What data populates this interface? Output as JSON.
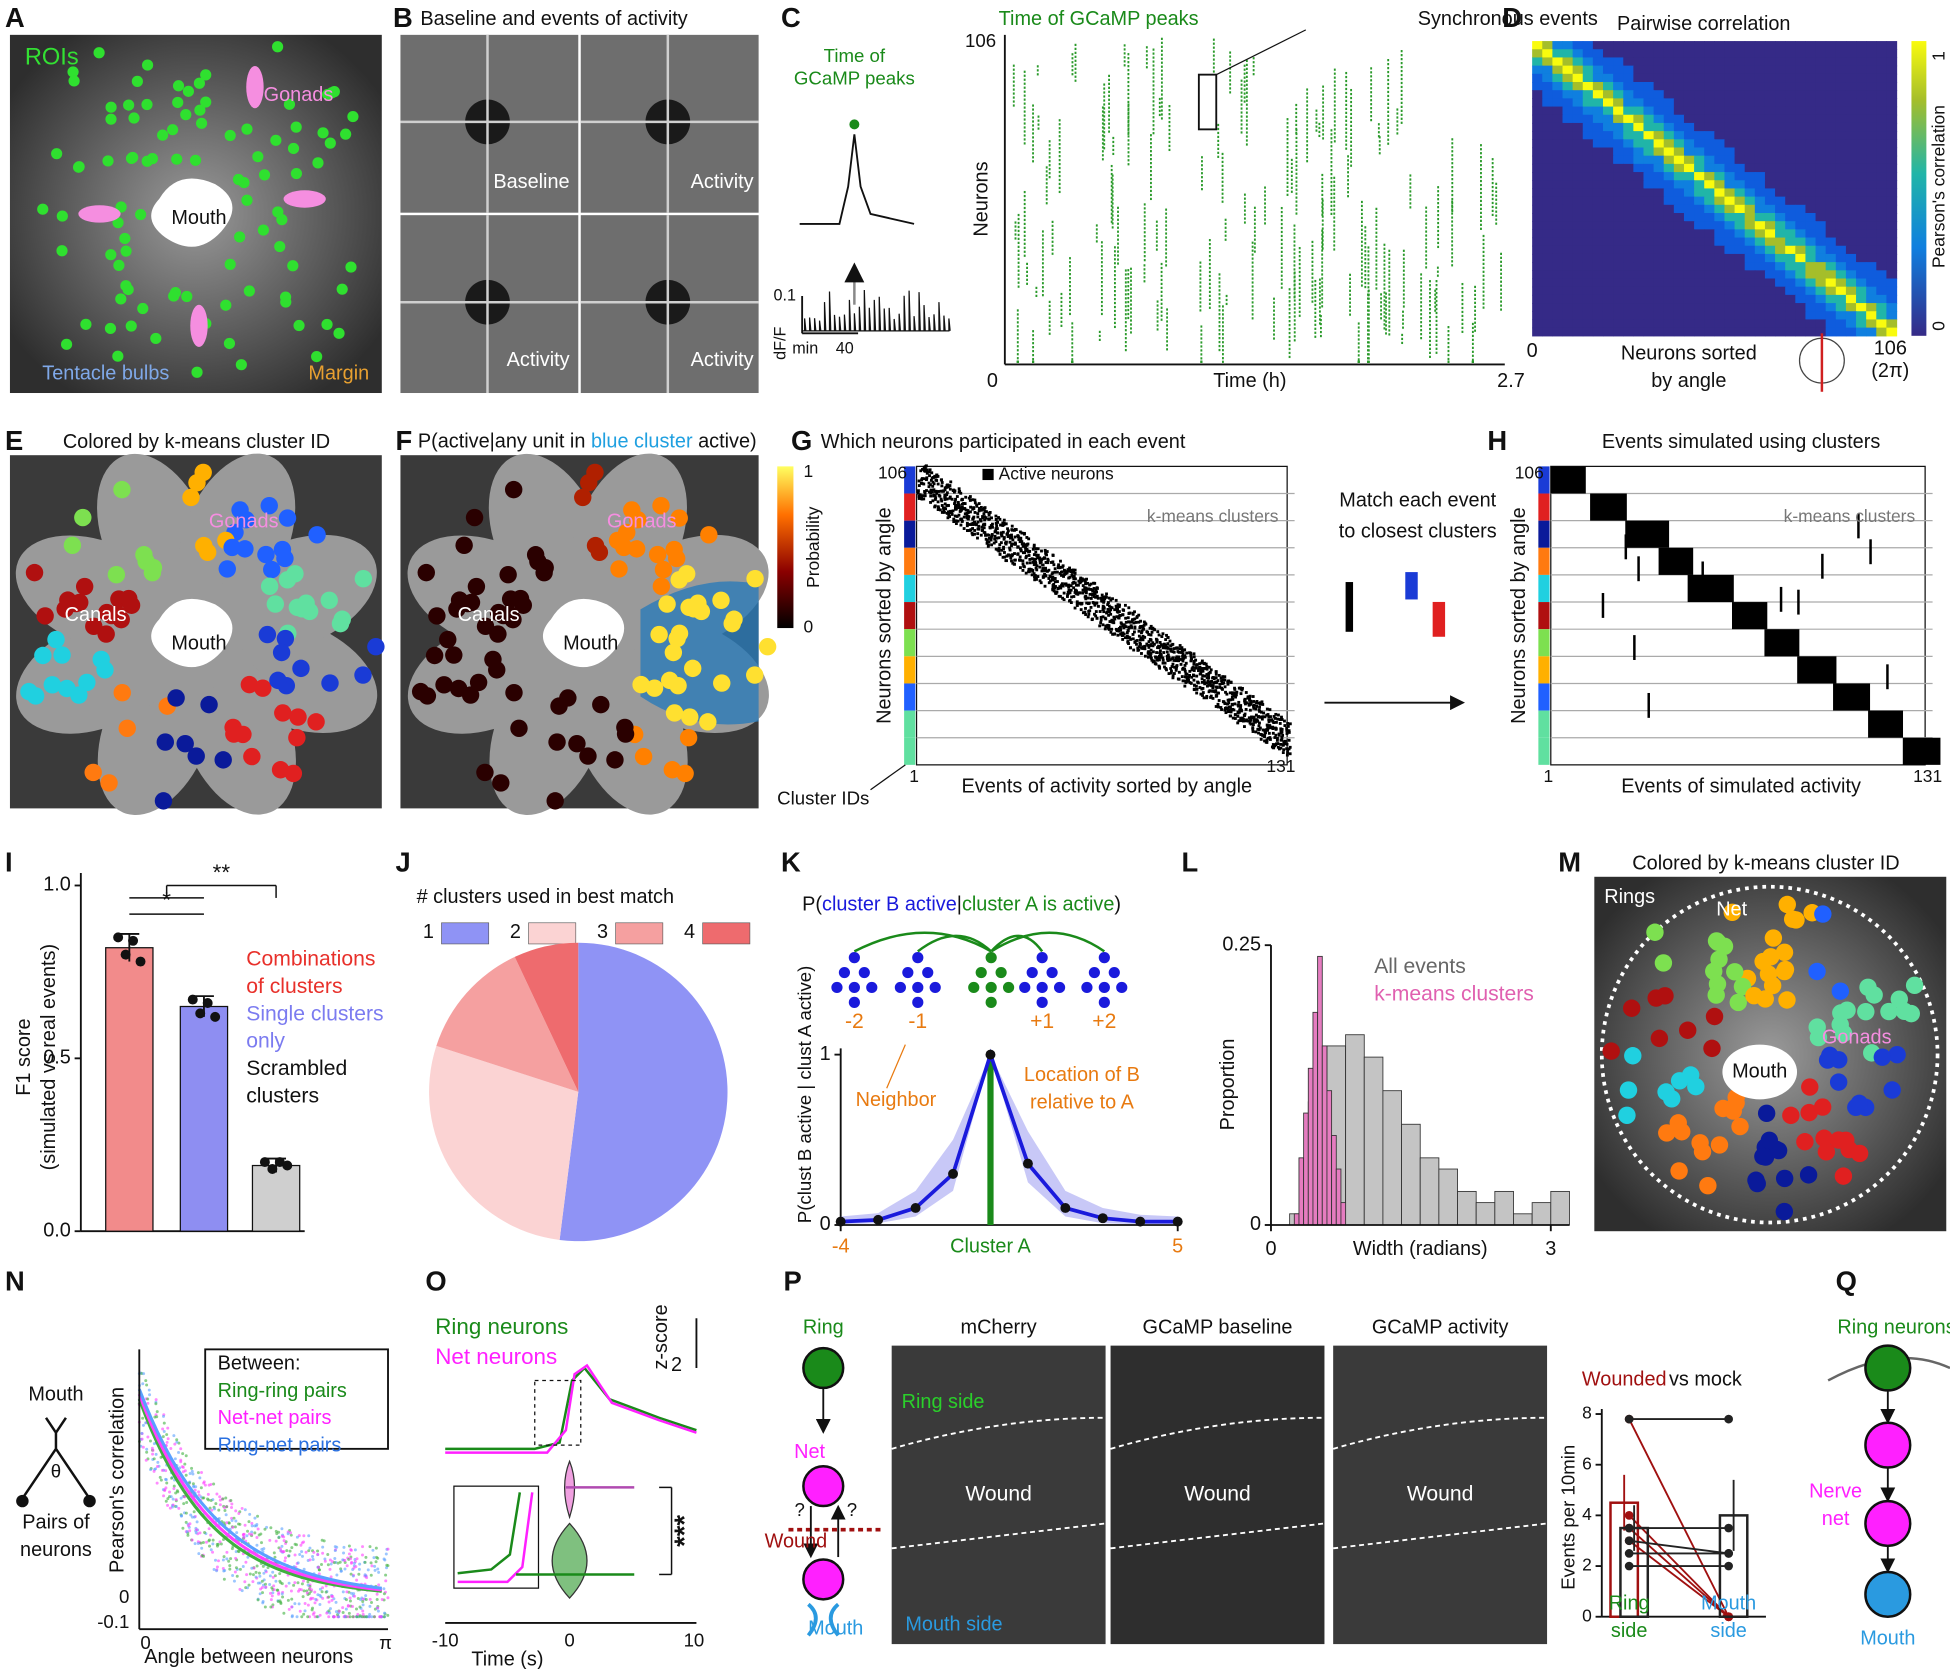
{
  "panel_a": {
    "letter": "A",
    "rois": "ROIs",
    "gonads": "Gonads",
    "mouth": "Mouth",
    "bulbs": "Tentacle bulbs",
    "margin": "Margin"
  },
  "panel_b": {
    "letter": "B",
    "title": "Baseline and events of activity",
    "q1": "Baseline",
    "q2": "Activity",
    "q3": "Activity",
    "q4": "Activity"
  },
  "panel_c": {
    "letter": "C",
    "peak": [
      "Time of",
      "GCaMP peaks"
    ],
    "scale_y": "0.1",
    "scale_y_unit": "dF/F",
    "scale_x_unit": "min",
    "scale_x": "40",
    "raster_title": "Time of GCaMP peaks",
    "callout": "Synchronous events",
    "y_top": "106",
    "ylabel": "Neurons",
    "x_start": "0",
    "xlabel": "Time (h)",
    "x_end": "2.7"
  },
  "panel_d": {
    "letter": "D",
    "title": "Pairwise correlation",
    "cbar_top": "1",
    "cbar_bottom": "0",
    "cbar_label": "Pearson's correlation",
    "x_start": "0",
    "xlabel": [
      "Neurons sorted",
      "by angle"
    ],
    "x_end": [
      "106",
      "(2π)"
    ]
  },
  "panel_e": {
    "letter": "E",
    "title": "Colored by k-means cluster ID",
    "gonads": "Gonads",
    "canals": "Canals",
    "mouth": "Mouth"
  },
  "panel_f": {
    "letter": "F",
    "title": [
      "P(active|any unit in ",
      "blue cluster",
      " active)"
    ],
    "cbar_top": "1",
    "cbar_bottom": "0",
    "cbar_label": "Probability",
    "gonads": "Gonads",
    "canals": "Canals",
    "mouth": "Mouth"
  },
  "panel_g": {
    "letter": "G",
    "title": "Which neurons participated in each event",
    "y_top": "106",
    "legend": "Active neurons",
    "clusters": "k-means clusters",
    "ylabel": "Neurons sorted by angle",
    "x_start": "1",
    "xlabel": "Events of activity sorted by angle",
    "x_end": "131",
    "cluster_ids": "Cluster IDs",
    "match": [
      "Match each event",
      "to closest clusters"
    ]
  },
  "panel_h": {
    "letter": "H",
    "title": "Events simulated using clusters",
    "y_top": "106",
    "clusters": "k-means clusters",
    "ylabel": "Neurons sorted by angle",
    "x_start": "1",
    "xlabel": "Events of simulated activity",
    "x_end": "131"
  },
  "panel_i": {
    "letter": "I",
    "chart": {
      "type": "bar",
      "ylabel": [
        "F1 score",
        "(simulated vs real events)"
      ],
      "categories": [
        [
          "Combinations",
          "of clusters"
        ],
        [
          "Single clusters",
          "only"
        ],
        [
          "Scrambled",
          "clusters"
        ]
      ],
      "values": [
        0.82,
        0.65,
        0.19
      ],
      "errors": [
        0.04,
        0.03,
        0.02
      ],
      "points": [
        [
          0.85,
          0.8,
          0.84,
          0.78
        ],
        [
          0.67,
          0.63,
          0.66,
          0.62
        ],
        [
          0.2,
          0.18,
          0.2,
          0.19
        ]
      ],
      "colors": [
        "#f28b8b",
        "#8e8ef2",
        "#cfcfcf"
      ],
      "label_colors": [
        "#e8302a",
        "#7b7bf0",
        "#111111"
      ],
      "ylim": [
        0,
        1
      ],
      "yticks": [
        {
          "value": 0,
          "label": "0.0"
        },
        {
          "value": 0.5,
          "label": "0.5"
        },
        {
          "value": 1,
          "label": "1.0"
        }
      ],
      "significance": [
        "*",
        "**"
      ]
    }
  },
  "panel_j": {
    "letter": "J",
    "chart": {
      "type": "pie",
      "title": "# clusters used in best match",
      "categories": [
        "1",
        "2",
        "3",
        "4"
      ],
      "values": [
        52,
        28,
        13,
        7
      ],
      "colors": [
        "#8f93f5",
        "#fbd3d3",
        "#f5a0a0",
        "#ee6b6e"
      ]
    }
  },
  "panel_k": {
    "letter": "K",
    "nodes": [
      "-2",
      "-1",
      "+1",
      "+2"
    ],
    "notes": [
      "Neighbor",
      "Location of B",
      "relative to A"
    ],
    "chart": {
      "type": "line",
      "title": [
        "P(",
        "cluster B active",
        "|",
        "cluster A is active",
        ")"
      ],
      "ylabel": "P(clust B active | clust A active)",
      "xlabel": "Cluster A",
      "x": [
        -4,
        -3,
        -2,
        -1,
        0,
        1,
        2,
        3,
        4,
        5
      ],
      "values": [
        0.02,
        0.03,
        0.1,
        0.3,
        1,
        0.36,
        0.1,
        0.04,
        0.02,
        0.02
      ],
      "ci_low": [
        0.005,
        0.01,
        0.05,
        0.2,
        1,
        0.25,
        0.05,
        0.01,
        0.005,
        0.005
      ],
      "ci_high": [
        0.05,
        0.07,
        0.2,
        0.5,
        1,
        0.55,
        0.2,
        0.1,
        0.06,
        0.05
      ],
      "color": "#1a1adc",
      "xlim": [
        -4,
        5
      ],
      "ylim": [
        0,
        1
      ],
      "xticks": [
        -4,
        5
      ],
      "yticks": [
        0,
        1
      ]
    }
  },
  "panel_l": {
    "letter": "L",
    "chart": {
      "type": "histogram",
      "xlabel": "Width (radians)",
      "ylabel": "Proportion",
      "series": [
        {
          "name": "All events",
          "color": "#c4c4c4",
          "bins": [
            0.2,
            0.4,
            0.6,
            0.8,
            1.0,
            1.2,
            1.4,
            1.6,
            1.8,
            2.0,
            2.2,
            2.4,
            2.6,
            2.8,
            3.0,
            3.2
          ],
          "values": [
            0.01,
            0.11,
            0.16,
            0.17,
            0.15,
            0.12,
            0.09,
            0.06,
            0.05,
            0.03,
            0.02,
            0.03,
            0.01,
            0.02,
            0.03
          ]
        },
        {
          "name": "k-means clusters",
          "color": "#e57cc0",
          "bins": [
            0.25,
            0.3,
            0.35,
            0.4,
            0.45,
            0.5,
            0.55,
            0.6,
            0.65,
            0.7,
            0.75,
            0.8
          ],
          "values": [
            0.01,
            0.06,
            0.1,
            0.14,
            0.19,
            0.24,
            0.16,
            0.12,
            0.08,
            0.05,
            0.02
          ]
        }
      ],
      "xlim": [
        0,
        3.2
      ],
      "ylim": [
        0,
        0.25
      ],
      "xticks": [
        0,
        3
      ],
      "yticks": [
        0,
        0.25
      ]
    }
  },
  "panel_m": {
    "letter": "M",
    "title": "Colored by k-means cluster ID",
    "rings": "Rings",
    "net": "Net",
    "gonads": "Gonads",
    "mouth": "Mouth"
  },
  "panel_n": {
    "letter": "N",
    "mouth": "Mouth",
    "theta": "θ",
    "pairs": [
      "Pairs of",
      "neurons"
    ],
    "ylabel": "Pearson's correlation",
    "y_ticks": [
      "0",
      "-0.1"
    ],
    "xlabel": "Angle between neurons",
    "x_ticks": [
      "0",
      "π"
    ],
    "legend_title": "Between:",
    "legend": [
      "Ring-ring pairs",
      "Net-net pairs",
      "Ring-net pairs"
    ]
  },
  "panel_o": {
    "letter": "O",
    "legend": [
      "Ring neurons",
      "Net neurons"
    ],
    "scale": "2",
    "scale_unit": "z-score",
    "sig": "***",
    "x_ticks": [
      "-10",
      "0",
      "10"
    ],
    "xlabel": "Time (s)"
  },
  "panel_p": {
    "letter": "P",
    "diagram": {
      "ring": "Ring",
      "net": "Net",
      "q1": "?",
      "q2": "?",
      "wound": "Wound",
      "mouth": "Mouth"
    },
    "images": [
      "mCherry",
      "GCaMP baseline",
      "GCaMP activity"
    ],
    "ring_side": "Ring side",
    "wound": [
      "Wound",
      "Wound",
      "Wound"
    ],
    "mouth_side": "Mouth side",
    "chart": {
      "type": "bar",
      "title": [
        "Wounded",
        "vs mock"
      ],
      "ylabel": "Events per 10min",
      "categories": [
        [
          "Ring",
          "side"
        ],
        [
          "Mouth",
          "side"
        ]
      ],
      "series": [
        {
          "color": "#a01010",
          "values": [
            4.5,
            0
          ],
          "errors": [
            1.1,
            0.1
          ],
          "pairs": [
            [
              7.8,
              0
            ],
            [
              4,
              0
            ],
            [
              3.5,
              0
            ],
            [
              3,
              0
            ]
          ]
        },
        {
          "color": "#222222",
          "values": [
            3.5,
            4
          ],
          "errors": [
            0.9,
            1.4
          ],
          "pairs": [
            [
              7.8,
              7.8
            ],
            [
              3.5,
              3.5
            ],
            [
              3,
              2.5
            ],
            [
              2.5,
              2.5
            ],
            [
              2,
              2
            ]
          ]
        }
      ],
      "ylim": [
        0,
        8
      ],
      "yticks": [
        0,
        2,
        4,
        6,
        8
      ]
    }
  },
  "panel_q": {
    "letter": "Q",
    "ring": "Ring neurons",
    "net": [
      "Nerve",
      "net"
    ],
    "mouth": "Mouth"
  }
}
